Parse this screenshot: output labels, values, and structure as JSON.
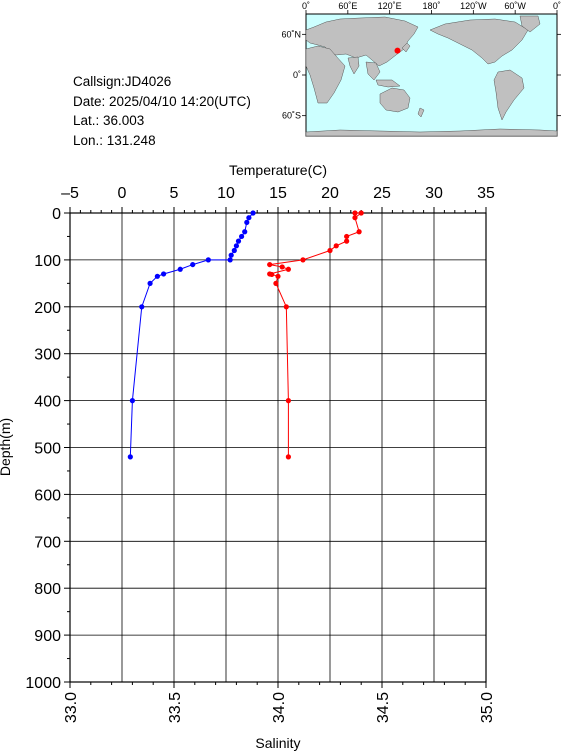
{
  "station": {
    "callsign": "Callsign:JD4026",
    "date": "Date:  2025/04/10 14:20(UTC)",
    "lat": "Lat.:   36.003",
    "lon": "Lon.:  131.248"
  },
  "map": {
    "top_ticks": [
      "0˚",
      "60˚E",
      "120˚E",
      "180˚",
      "120˚W",
      "60˚W",
      "0˚"
    ],
    "side_ticks": [
      "60˚N",
      "0˚",
      "60˚S"
    ],
    "ocean_color": "#ccffff",
    "land_color": "#c0c0c0",
    "marker_color": "#ff0000",
    "station_position": {
      "lon": 131.248,
      "lat": 36.003
    }
  },
  "chart_data": {
    "type": "line",
    "y_axis": {
      "label": "Depth(m)",
      "range": [
        0,
        1000
      ],
      "ticks": [
        0,
        100,
        200,
        300,
        400,
        500,
        600,
        700,
        800,
        900,
        1000
      ],
      "inverted": true
    },
    "x_top": {
      "label": "Temperature(C)",
      "range": [
        -5,
        35
      ],
      "ticks": [
        -5,
        0,
        5,
        10,
        15,
        20,
        25,
        30,
        35
      ]
    },
    "x_bottom": {
      "label": "Salinity",
      "range": [
        33.0,
        35.0
      ],
      "ticks": [
        "33.0",
        "33.5",
        "34.0",
        "34.5",
        "35.0"
      ]
    },
    "grid": true,
    "series": [
      {
        "axis": "top",
        "color": "#0000ff",
        "points": [
          [
            12.6,
            0
          ],
          [
            12.2,
            10
          ],
          [
            12.0,
            20
          ],
          [
            11.8,
            40
          ],
          [
            11.5,
            50
          ],
          [
            11.2,
            60
          ],
          [
            11.0,
            70
          ],
          [
            10.8,
            80
          ],
          [
            10.5,
            90
          ],
          [
            10.4,
            100
          ],
          [
            8.3,
            100
          ],
          [
            6.8,
            110
          ],
          [
            5.6,
            120
          ],
          [
            4.0,
            130
          ],
          [
            3.4,
            135
          ],
          [
            2.7,
            150
          ],
          [
            1.9,
            200
          ],
          [
            1.0,
            400
          ],
          [
            0.8,
            520
          ]
        ]
      },
      {
        "axis": "bottom",
        "color": "#ff0000",
        "points": [
          [
            34.37,
            0
          ],
          [
            34.4,
            0
          ],
          [
            34.37,
            10
          ],
          [
            34.39,
            40
          ],
          [
            34.33,
            50
          ],
          [
            34.33,
            60
          ],
          [
            34.28,
            70
          ],
          [
            34.25,
            80
          ],
          [
            34.12,
            100
          ],
          [
            33.96,
            110
          ],
          [
            34.02,
            115
          ],
          [
            34.05,
            120
          ],
          [
            33.96,
            130
          ],
          [
            33.97,
            131
          ],
          [
            34.0,
            135
          ],
          [
            33.99,
            150
          ],
          [
            34.04,
            200
          ],
          [
            34.05,
            400
          ],
          [
            34.05,
            520
          ]
        ]
      }
    ]
  }
}
